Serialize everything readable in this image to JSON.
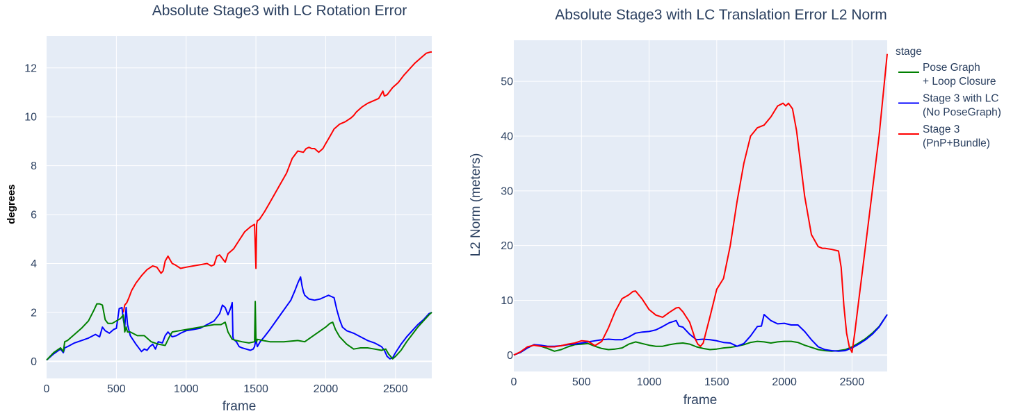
{
  "chart_data": [
    {
      "type": "line",
      "title": "Absolute Stage3 with LC Rotation Error",
      "xlabel": "frame",
      "ylabel": "degrees",
      "xlim": [
        0,
        2760
      ],
      "ylim": [
        -0.7,
        13.3
      ],
      "xticks": [
        0,
        500,
        1000,
        1500,
        2000,
        2500
      ],
      "yticks": [
        0,
        2,
        4,
        6,
        8,
        10,
        12
      ],
      "grid": true,
      "series": [
        {
          "name": "Stage 3 (PnP+Bundle)",
          "color": "#ff0000",
          "x": [
            550,
            560,
            575,
            590,
            610,
            640,
            680,
            720,
            760,
            790,
            820,
            835,
            850,
            870,
            880,
            890,
            900,
            920,
            960,
            1000,
            1050,
            1100,
            1150,
            1180,
            1200,
            1220,
            1240,
            1260,
            1280,
            1300,
            1320,
            1340,
            1380,
            1420,
            1460,
            1490,
            1500,
            1505,
            1510,
            1525,
            1560,
            1600,
            1640,
            1680,
            1720,
            1760,
            1800,
            1840,
            1860,
            1880,
            1900,
            1920,
            1950,
            1980,
            2000,
            2020,
            2040,
            2060,
            2080,
            2100,
            2140,
            2180,
            2200,
            2220,
            2240,
            2260,
            2300,
            2340,
            2380,
            2410,
            2420,
            2440,
            2460,
            2480,
            2520,
            2560,
            2600,
            2640,
            2680,
            2720,
            2750,
            2760
          ],
          "values": [
            2.0,
            2.3,
            2.4,
            2.6,
            2.9,
            3.2,
            3.5,
            3.75,
            3.9,
            3.85,
            3.6,
            3.7,
            4.1,
            4.3,
            4.2,
            4.1,
            4.0,
            3.95,
            3.8,
            3.85,
            3.9,
            3.95,
            4.0,
            3.9,
            3.95,
            4.3,
            4.35,
            4.2,
            4.05,
            4.4,
            4.5,
            4.6,
            4.95,
            5.3,
            5.5,
            5.6,
            3.8,
            5.6,
            5.75,
            5.8,
            6.1,
            6.5,
            6.9,
            7.3,
            7.7,
            8.3,
            8.6,
            8.55,
            8.7,
            8.75,
            8.7,
            8.7,
            8.55,
            8.7,
            8.9,
            9.1,
            9.3,
            9.5,
            9.6,
            9.7,
            9.8,
            9.95,
            10.05,
            10.2,
            10.3,
            10.4,
            10.55,
            10.65,
            10.75,
            11.05,
            10.85,
            10.9,
            11.05,
            11.2,
            11.4,
            11.7,
            11.95,
            12.2,
            12.4,
            12.6,
            12.65,
            12.65
          ]
        },
        {
          "name": "Stage 3 with LC (No PoseGraph)",
          "color": "#0000ff",
          "x": [
            0,
            50,
            100,
            120,
            130,
            150,
            200,
            250,
            300,
            350,
            380,
            400,
            420,
            450,
            480,
            500,
            520,
            540,
            550,
            560,
            570,
            580,
            600,
            640,
            680,
            700,
            720,
            740,
            760,
            780,
            800,
            830,
            850,
            870,
            900,
            930,
            960,
            1000,
            1050,
            1100,
            1150,
            1200,
            1240,
            1260,
            1280,
            1300,
            1320,
            1330,
            1335,
            1340,
            1360,
            1380,
            1400,
            1430,
            1460,
            1480,
            1490,
            1500,
            1510,
            1530,
            1560,
            1600,
            1650,
            1700,
            1750,
            1780,
            1800,
            1820,
            1830,
            1840,
            1850,
            1880,
            1920,
            1960,
            2000,
            2020,
            2040,
            2060,
            2080,
            2100,
            2120,
            2150,
            2200,
            2250,
            2300,
            2350,
            2400,
            2420,
            2440,
            2460,
            2480,
            2500,
            2540,
            2580,
            2620,
            2660,
            2700,
            2740,
            2760
          ],
          "values": [
            0.05,
            0.3,
            0.5,
            0.35,
            0.55,
            0.6,
            0.75,
            0.85,
            0.95,
            1.1,
            1.0,
            1.4,
            1.25,
            1.15,
            1.3,
            1.35,
            2.15,
            2.2,
            1.7,
            1.4,
            2.2,
            1.5,
            1.05,
            0.7,
            0.4,
            0.5,
            0.45,
            0.6,
            0.7,
            0.5,
            0.8,
            0.75,
            1.05,
            1.2,
            1.0,
            1.05,
            1.15,
            1.25,
            1.3,
            1.35,
            1.5,
            1.65,
            1.95,
            2.3,
            2.2,
            1.9,
            2.2,
            2.4,
            1.0,
            0.9,
            0.8,
            0.6,
            0.55,
            0.5,
            0.45,
            0.5,
            0.6,
            0.9,
            0.6,
            0.8,
            1.0,
            1.3,
            1.7,
            2.1,
            2.5,
            2.9,
            3.2,
            3.45,
            3.1,
            2.85,
            2.7,
            2.55,
            2.5,
            2.55,
            2.65,
            2.7,
            2.65,
            2.6,
            2.1,
            1.7,
            1.4,
            1.25,
            1.15,
            1.0,
            0.85,
            0.75,
            0.6,
            0.45,
            0.2,
            0.1,
            0.15,
            0.35,
            0.7,
            1.0,
            1.25,
            1.5,
            1.7,
            1.95,
            2.0
          ]
        },
        {
          "name": "Pose Graph + Loop Closure",
          "color": "#008000",
          "x": [
            0,
            50,
            100,
            120,
            130,
            150,
            200,
            250,
            300,
            340,
            360,
            380,
            400,
            420,
            440,
            470,
            500,
            530,
            550,
            560,
            570,
            580,
            600,
            650,
            700,
            750,
            800,
            850,
            880,
            900,
            950,
            1000,
            1050,
            1100,
            1150,
            1200,
            1250,
            1280,
            1300,
            1330,
            1360,
            1400,
            1450,
            1490,
            1495,
            1500,
            1505,
            1510,
            1550,
            1600,
            1700,
            1800,
            1850,
            1900,
            1950,
            2000,
            2030,
            2050,
            2070,
            2100,
            2150,
            2200,
            2250,
            2300,
            2350,
            2400,
            2430,
            2450,
            2480,
            2500,
            2540,
            2580,
            2620,
            2660,
            2700,
            2740,
            2760
          ],
          "values": [
            0.05,
            0.35,
            0.55,
            0.4,
            0.8,
            0.85,
            1.1,
            1.35,
            1.65,
            2.1,
            2.35,
            2.35,
            2.3,
            1.7,
            1.55,
            1.55,
            1.65,
            1.75,
            1.9,
            1.2,
            1.4,
            1.2,
            1.2,
            1.05,
            1.05,
            0.8,
            0.7,
            0.65,
            1.0,
            1.2,
            1.25,
            1.3,
            1.35,
            1.4,
            1.45,
            1.5,
            1.5,
            1.6,
            1.2,
            0.9,
            0.85,
            0.8,
            0.75,
            0.8,
            2.45,
            0.9,
            0.8,
            0.9,
            0.85,
            0.8,
            0.8,
            0.85,
            0.8,
            1.0,
            1.2,
            1.4,
            1.55,
            1.6,
            1.3,
            1.0,
            0.7,
            0.5,
            0.55,
            0.55,
            0.5,
            0.45,
            0.5,
            0.3,
            0.1,
            0.2,
            0.45,
            0.8,
            1.1,
            1.4,
            1.65,
            1.9,
            2.0
          ]
        }
      ]
    },
    {
      "type": "line",
      "title": "Absolute Stage3 with LC Translation Error L2 Norm",
      "xlabel": "frame",
      "ylabel": "L2 Norm (meters)",
      "xlim": [
        0,
        2760
      ],
      "ylim": [
        -3,
        57.5
      ],
      "xticks": [
        0,
        500,
        1000,
        1500,
        2000,
        2500
      ],
      "yticks": [
        0,
        10,
        20,
        30,
        40,
        50
      ],
      "grid": true,
      "legend": {
        "title": "stage",
        "position": "right"
      },
      "series": [
        {
          "name": "Pose Graph + Loop Closure",
          "legend_lines": [
            "Pose Graph",
            "+ Loop Closure"
          ],
          "color": "#008000",
          "x": [
            0,
            50,
            100,
            150,
            200,
            250,
            300,
            350,
            400,
            450,
            500,
            550,
            600,
            650,
            700,
            750,
            800,
            850,
            900,
            950,
            1000,
            1050,
            1100,
            1150,
            1200,
            1250,
            1300,
            1350,
            1400,
            1450,
            1500,
            1550,
            1600,
            1650,
            1700,
            1750,
            1800,
            1850,
            1900,
            1950,
            2000,
            2050,
            2100,
            2150,
            2200,
            2250,
            2300,
            2350,
            2400,
            2450,
            2500,
            2550,
            2600,
            2650,
            2700,
            2760
          ],
          "values": [
            0.0,
            0.5,
            1.3,
            1.9,
            1.6,
            1.2,
            0.7,
            1.0,
            1.5,
            1.9,
            2.0,
            2.1,
            1.6,
            1.2,
            1.0,
            1.1,
            1.3,
            2.0,
            2.4,
            2.1,
            1.8,
            1.6,
            1.6,
            1.9,
            2.1,
            2.2,
            2.0,
            1.5,
            1.2,
            1.0,
            1.1,
            1.3,
            1.4,
            1.6,
            1.9,
            2.3,
            2.5,
            2.4,
            2.2,
            2.4,
            2.5,
            2.5,
            2.3,
            1.8,
            1.4,
            1.0,
            0.8,
            0.7,
            0.8,
            1.0,
            1.5,
            2.2,
            3.0,
            4.0,
            5.2,
            7.4
          ]
        },
        {
          "name": "Stage 3 with LC (No PoseGraph)",
          "legend_lines": [
            "Stage 3 with LC",
            "(No PoseGraph)"
          ],
          "color": "#0000ff",
          "x": [
            0,
            50,
            100,
            150,
            200,
            250,
            300,
            350,
            400,
            450,
            500,
            550,
            600,
            650,
            700,
            750,
            800,
            850,
            900,
            950,
            1000,
            1050,
            1100,
            1150,
            1200,
            1220,
            1250,
            1300,
            1350,
            1400,
            1450,
            1500,
            1550,
            1600,
            1650,
            1700,
            1750,
            1800,
            1830,
            1850,
            1900,
            1950,
            2000,
            2050,
            2100,
            2150,
            2200,
            2250,
            2300,
            2350,
            2400,
            2450,
            2500,
            2550,
            2600,
            2650,
            2700,
            2760
          ],
          "values": [
            0.0,
            0.5,
            1.3,
            1.9,
            1.8,
            1.6,
            1.6,
            1.7,
            1.9,
            2.0,
            2.2,
            2.4,
            2.6,
            2.8,
            2.9,
            2.8,
            2.8,
            3.3,
            4.0,
            4.2,
            4.3,
            4.6,
            5.2,
            5.9,
            6.3,
            5.3,
            5.1,
            3.8,
            2.8,
            2.9,
            2.8,
            2.6,
            2.3,
            2.2,
            1.6,
            2.1,
            3.5,
            5.2,
            5.3,
            7.4,
            6.3,
            5.7,
            5.8,
            5.5,
            5.5,
            4.3,
            2.8,
            1.5,
            1.0,
            0.8,
            0.7,
            0.8,
            1.3,
            2.0,
            2.8,
            3.8,
            5.1,
            7.4
          ]
        },
        {
          "name": "Stage 3 (PnP+Bundle)",
          "legend_lines": [
            "Stage 3",
            "(PnP+Bundle)"
          ],
          "color": "#ff0000",
          "x": [
            0,
            50,
            100,
            150,
            200,
            250,
            300,
            350,
            400,
            450,
            500,
            550,
            600,
            650,
            700,
            750,
            800,
            850,
            880,
            900,
            950,
            1000,
            1050,
            1100,
            1150,
            1200,
            1220,
            1250,
            1300,
            1340,
            1360,
            1380,
            1400,
            1450,
            1500,
            1550,
            1600,
            1650,
            1700,
            1750,
            1800,
            1850,
            1900,
            1950,
            1990,
            2010,
            2030,
            2060,
            2090,
            2110,
            2150,
            2200,
            2250,
            2280,
            2300,
            2350,
            2400,
            2420,
            2440,
            2460,
            2480,
            2500,
            2520,
            2550,
            2600,
            2650,
            2700,
            2760
          ],
          "values": [
            0.0,
            0.6,
            1.5,
            1.8,
            1.6,
            1.5,
            1.5,
            1.7,
            2.0,
            2.2,
            2.6,
            2.5,
            1.7,
            2.5,
            5.0,
            8.0,
            10.3,
            11.0,
            11.6,
            11.7,
            10.2,
            8.3,
            7.3,
            6.9,
            7.8,
            8.6,
            8.7,
            7.9,
            6.0,
            3.0,
            2.0,
            1.6,
            2.2,
            7.0,
            12.0,
            14.0,
            20.0,
            28.0,
            35.0,
            40.0,
            41.5,
            42.0,
            43.5,
            45.5,
            46.0,
            45.5,
            46.0,
            45.0,
            41.0,
            37.0,
            29.0,
            22.0,
            19.8,
            19.5,
            19.5,
            19.3,
            19.0,
            16.0,
            9.0,
            4.0,
            1.5,
            0.5,
            4.0,
            10.0,
            20.0,
            30.0,
            40.0,
            55.0
          ]
        }
      ]
    }
  ]
}
